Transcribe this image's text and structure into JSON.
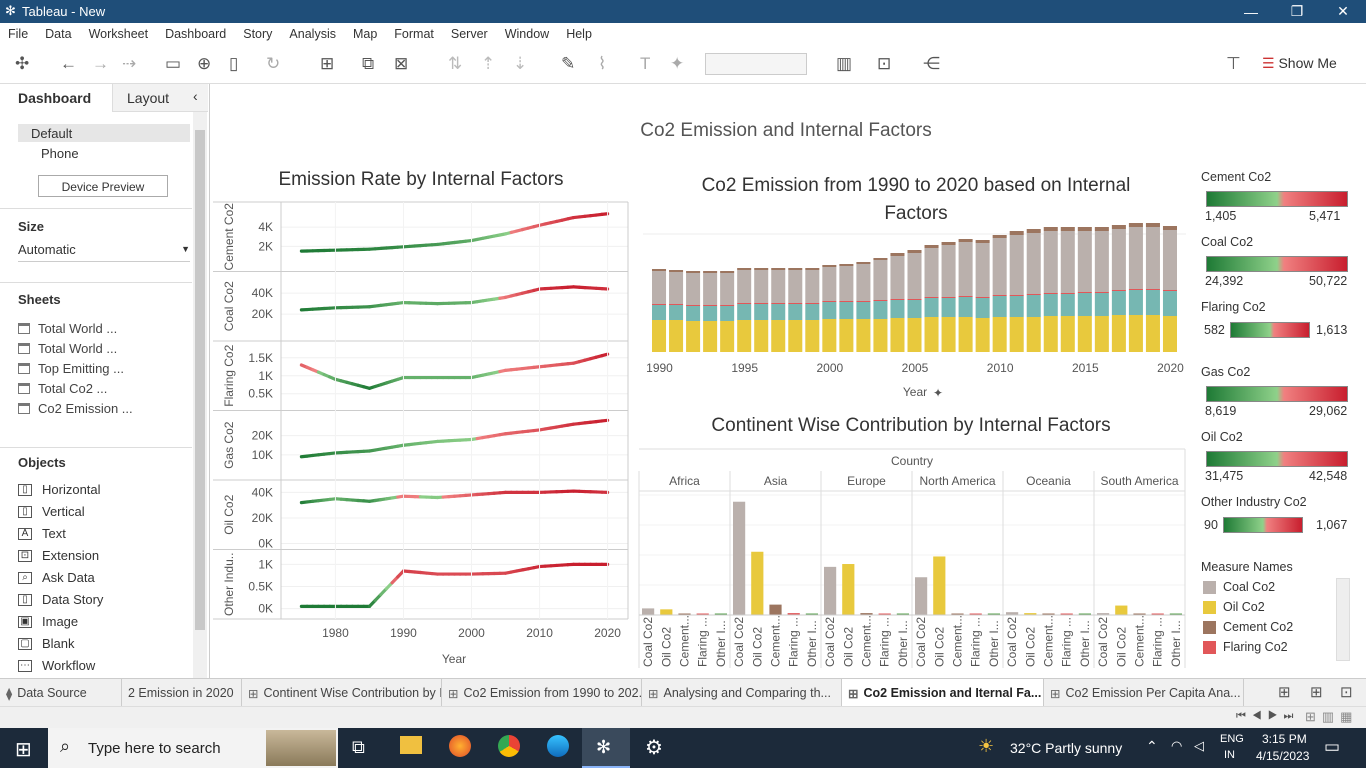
{
  "window": {
    "title": "Tableau - New"
  },
  "menu": [
    "File",
    "Data",
    "Worksheet",
    "Dashboard",
    "Story",
    "Analysis",
    "Map",
    "Format",
    "Server",
    "Window",
    "Help"
  ],
  "toolbar": {
    "show_me": "Show Me"
  },
  "left": {
    "tab_dashboard": "Dashboard",
    "tab_layout": "Layout",
    "device": {
      "default": "Default",
      "phone": "Phone",
      "preview": "Device Preview"
    },
    "size_label": "Size",
    "size_value": "Automatic",
    "sheets_label": "Sheets",
    "sheets": [
      "Total World ...",
      "Total World ...",
      "Top Emitting ...",
      "Total Co2 ...",
      "Co2 Emission ..."
    ],
    "objects_label": "Objects",
    "objects": [
      "Horizontal",
      "Vertical",
      "Text",
      "Extension",
      "Ask Data",
      "Data Story",
      "Image",
      "Blank",
      "Workflow"
    ]
  },
  "dashboard": {
    "title": "Co2 Emission and Internal Factors",
    "left_chart": {
      "title": "Emission Rate by Internal Factors",
      "rows": [
        {
          "label": "Cement Co2",
          "ticks": [
            "4K",
            "2K"
          ]
        },
        {
          "label": "Coal Co2",
          "ticks": [
            "40K",
            "20K"
          ]
        },
        {
          "label": "Flaring Co2",
          "ticks": [
            "1.5K",
            "1K",
            "0.5K"
          ]
        },
        {
          "label": "Gas Co2",
          "ticks": [
            "20K",
            "10K"
          ]
        },
        {
          "label": "Oil Co2",
          "ticks": [
            "40K",
            "20K",
            "0K"
          ]
        },
        {
          "label": "Other Indu..",
          "ticks": [
            "1K",
            "0.5K",
            "0K"
          ]
        }
      ],
      "xticks": [
        "1980",
        "1990",
        "2000",
        "2010",
        "2020"
      ],
      "xlabel": "Year"
    },
    "stack_chart": {
      "title_line1": "Co2 Emission from 1990 to 2020 based on Internal",
      "title_line2": "Factors",
      "xticks": [
        "1990",
        "1995",
        "2000",
        "2005",
        "2010",
        "2015",
        "2020"
      ],
      "xlabel": "Year"
    },
    "continent_chart": {
      "title": "Continent Wise Contribution by Internal Factors",
      "header": "Country",
      "continents": [
        "Africa",
        "Asia",
        "Europe",
        "North America",
        "Oceania",
        "South America"
      ],
      "measures": [
        "Coal Co2",
        "Oil Co2",
        "Cement...",
        "Flaring ...",
        "Other I..."
      ]
    },
    "legends": [
      {
        "title": "Cement Co2",
        "min": "1,405",
        "max": "5,471"
      },
      {
        "title": "Coal Co2",
        "min": "24,392",
        "max": "50,722"
      },
      {
        "title": "Flaring Co2",
        "min": "582",
        "max": "1,613"
      },
      {
        "title": "Gas Co2",
        "min": "8,619",
        "max": "29,062"
      },
      {
        "title": "Oil Co2",
        "min": "31,475",
        "max": "42,548"
      },
      {
        "title": "Other Industry Co2",
        "min": "90",
        "max": "1,067"
      }
    ],
    "measure_legend": {
      "title": "Measure Names",
      "items": [
        {
          "name": "Coal Co2",
          "color": "#bab0ac"
        },
        {
          "name": "Oil Co2",
          "color": "#e8c93d"
        },
        {
          "name": "Cement Co2",
          "color": "#9c755f"
        },
        {
          "name": "Flaring Co2",
          "color": "#e15759"
        }
      ]
    }
  },
  "tabs": [
    "Data Source",
    "2 Emission in 2020",
    "Continent Wise Contribution by I...",
    "Co2 Emission from 1990 to 202...",
    "Analysing and Comparing th...",
    "Co2 Emission and Iternal Fa...",
    "Co2 Emission Per Capita Ana..."
  ],
  "taskbar": {
    "search": "Type here to search",
    "weather": "32°C  Partly sunny",
    "lang1": "ENG",
    "lang2": "IN",
    "time": "3:15 PM",
    "date": "4/15/2023"
  },
  "chart_data": [
    {
      "type": "line",
      "title": "Emission Rate by Internal Factors",
      "xlabel": "Year",
      "x": [
        1975,
        1980,
        1985,
        1990,
        1995,
        2000,
        2005,
        2010,
        2015,
        2020
      ],
      "series": [
        {
          "name": "Cement Co2",
          "values": [
            1500,
            1600,
            1700,
            1950,
            2200,
            2600,
            3300,
            4200,
            5000,
            5400
          ]
        },
        {
          "name": "Coal Co2",
          "values": [
            24000,
            26000,
            27000,
            31000,
            30000,
            31000,
            36000,
            44000,
            46000,
            44000
          ]
        },
        {
          "name": "Flaring Co2",
          "values": [
            1300,
            900,
            650,
            950,
            950,
            950,
            1150,
            1250,
            1350,
            1600
          ]
        },
        {
          "name": "Gas Co2",
          "values": [
            9000,
            11000,
            12000,
            15000,
            17000,
            18000,
            21000,
            23000,
            26000,
            28000
          ]
        },
        {
          "name": "Oil Co2",
          "values": [
            32000,
            35000,
            33000,
            37000,
            36000,
            38000,
            40000,
            40000,
            41000,
            40000
          ]
        },
        {
          "name": "Other Industry Co2",
          "values": [
            50,
            50,
            50,
            850,
            780,
            780,
            800,
            950,
            1000,
            1000
          ]
        }
      ]
    },
    {
      "type": "bar",
      "title": "Co2 Emission from 1990 to 2020 based on Internal Factors",
      "xlabel": "Year",
      "categories": [
        1990,
        1991,
        1992,
        1993,
        1994,
        1995,
        1996,
        1997,
        1998,
        1999,
        2000,
        2001,
        2002,
        2003,
        2004,
        2005,
        2006,
        2007,
        2008,
        2009,
        2010,
        2011,
        2012,
        2013,
        2014,
        2015,
        2016,
        2017,
        2018,
        2019,
        2020
      ],
      "series": [
        {
          "name": "Oil Co2",
          "values": [
            32,
            32,
            31,
            31,
            31,
            32,
            32,
            32,
            32,
            32,
            33,
            33,
            33,
            33,
            34,
            34,
            35,
            35,
            35,
            34,
            35,
            35,
            35,
            36,
            36,
            36,
            36,
            37,
            37,
            37,
            36
          ]
        },
        {
          "name": "Gas Co2",
          "values": [
            15,
            15,
            15,
            15,
            15,
            16,
            16,
            16,
            16,
            16,
            17,
            17,
            17,
            18,
            18,
            18,
            19,
            19,
            20,
            20,
            21,
            21,
            22,
            22,
            22,
            23,
            23,
            24,
            25,
            25,
            25
          ]
        },
        {
          "name": "Flaring Co2",
          "values": [
            1,
            1,
            1,
            1,
            1,
            1,
            1,
            1,
            1,
            1,
            1,
            1,
            1,
            1,
            1,
            1,
            1,
            1,
            1,
            1,
            1,
            1,
            1,
            1,
            1,
            1,
            1,
            1,
            1,
            1,
            1
          ]
        },
        {
          "name": "Coal Co2",
          "values": [
            33,
            32,
            32,
            32,
            32,
            33,
            33,
            33,
            33,
            33,
            34,
            35,
            37,
            40,
            43,
            46,
            49,
            52,
            54,
            54,
            57,
            60,
            61,
            62,
            62,
            61,
            61,
            61,
            62,
            62,
            60
          ]
        },
        {
          "name": "Cement Co2",
          "values": [
            2,
            2,
            2,
            2,
            2,
            2,
            2,
            2,
            2,
            2,
            2,
            2,
            2,
            2,
            3,
            3,
            3,
            3,
            3,
            3,
            3,
            4,
            4,
            4,
            4,
            4,
            4,
            4,
            4,
            4,
            4
          ]
        }
      ]
    },
    {
      "type": "bar",
      "title": "Continent Wise Contribution by Internal Factors",
      "categories": [
        "Africa",
        "Asia",
        "Europe",
        "North America",
        "Oceania",
        "South America"
      ],
      "series": [
        {
          "name": "Coal Co2",
          "values": [
            7,
            120,
            51,
            40,
            3,
            2
          ]
        },
        {
          "name": "Oil Co2",
          "values": [
            6,
            67,
            54,
            62,
            2,
            10
          ]
        },
        {
          "name": "Cement Co2",
          "values": [
            1,
            11,
            2,
            1,
            0,
            1
          ]
        },
        {
          "name": "Flaring Co2",
          "values": [
            1,
            2,
            1,
            1,
            0,
            1
          ]
        },
        {
          "name": "Other Industry Co2",
          "values": [
            0,
            1,
            1,
            1,
            0,
            0
          ]
        }
      ]
    }
  ]
}
